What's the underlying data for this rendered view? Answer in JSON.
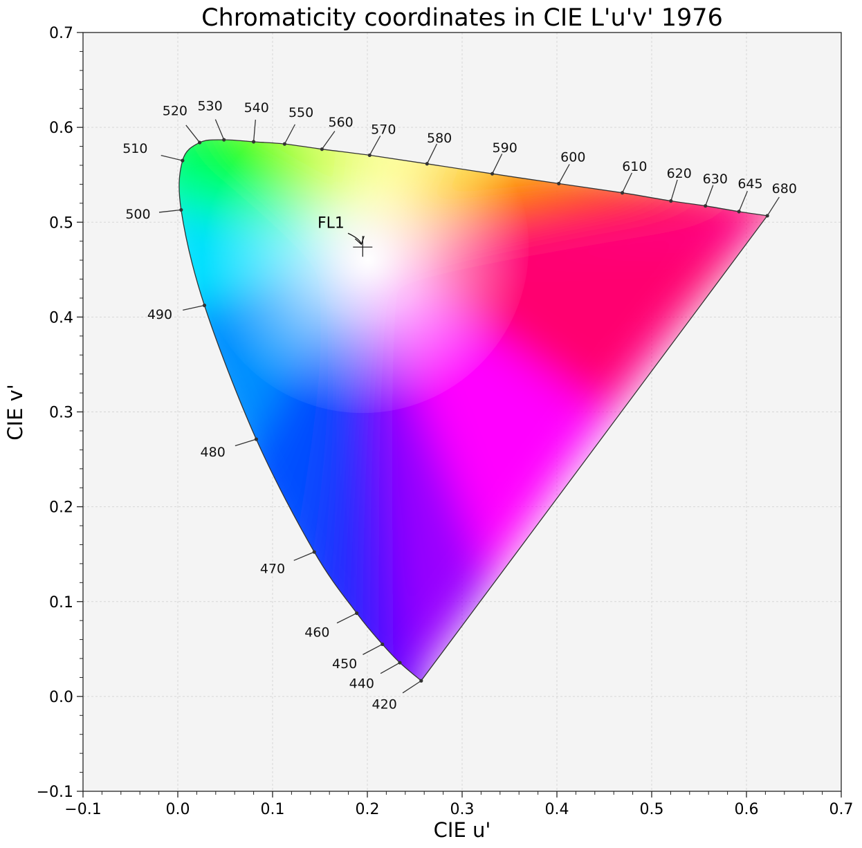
{
  "chart_data": {
    "type": "scatter",
    "title": "Chromaticity coordinates in CIE L'u'v' 1976",
    "xlabel": "CIE u'",
    "ylabel": "CIE v'",
    "xlim": [
      -0.1,
      0.7
    ],
    "ylim": [
      -0.1,
      0.7
    ],
    "xticks": [
      -0.1,
      0.0,
      0.1,
      0.2,
      0.3,
      0.4,
      0.5,
      0.6,
      0.7
    ],
    "yticks": [
      -0.1,
      0.0,
      0.1,
      0.2,
      0.3,
      0.4,
      0.5,
      0.6,
      0.7
    ],
    "xtick_labels": [
      "−0.1",
      "0.0",
      "0.1",
      "0.2",
      "0.3",
      "0.4",
      "0.5",
      "0.6",
      "0.7"
    ],
    "ytick_labels": [
      "−0.1",
      "0.0",
      "0.1",
      "0.2",
      "0.3",
      "0.4",
      "0.5",
      "0.6",
      "0.7"
    ],
    "grid": true,
    "background": "#f4f4f4",
    "spectral_locus": [
      {
        "label": "420",
        "u": 0.2568,
        "v": 0.0165,
        "lu": 0.218,
        "lv": -0.009
      },
      {
        "label": "440",
        "u": 0.2343,
        "v": 0.0356,
        "lu": 0.194,
        "lv": 0.013
      },
      {
        "label": "450",
        "u": 0.2159,
        "v": 0.055,
        "lu": 0.176,
        "lv": 0.034
      },
      {
        "label": "460",
        "u": 0.1888,
        "v": 0.0878,
        "lu": 0.147,
        "lv": 0.067
      },
      {
        "label": "470",
        "u": 0.144,
        "v": 0.1523,
        "lu": 0.1,
        "lv": 0.134
      },
      {
        "label": "480",
        "u": 0.0828,
        "v": 0.2712,
        "lu": 0.037,
        "lv": 0.257
      },
      {
        "label": "490",
        "u": 0.0281,
        "v": 0.4123,
        "lu": -0.019,
        "lv": 0.402
      },
      {
        "label": "500",
        "u": 0.0035,
        "v": 0.513,
        "lu": -0.042,
        "lv": 0.508
      },
      {
        "label": "510",
        "u": 0.005,
        "v": 0.565,
        "lu": -0.045,
        "lv": 0.577
      },
      {
        "label": "520",
        "u": 0.0231,
        "v": 0.584,
        "lu": -0.003,
        "lv": 0.617
      },
      {
        "label": "530",
        "u": 0.0487,
        "v": 0.5869,
        "lu": 0.034,
        "lv": 0.622
      },
      {
        "label": "540",
        "u": 0.08,
        "v": 0.5848,
        "lu": 0.083,
        "lv": 0.62
      },
      {
        "label": "550",
        "u": 0.1127,
        "v": 0.5825,
        "lu": 0.13,
        "lv": 0.615
      },
      {
        "label": "560",
        "u": 0.1521,
        "v": 0.577,
        "lu": 0.172,
        "lv": 0.605
      },
      {
        "label": "570",
        "u": 0.2024,
        "v": 0.5706,
        "lu": 0.217,
        "lv": 0.597
      },
      {
        "label": "580",
        "u": 0.263,
        "v": 0.5616,
        "lu": 0.276,
        "lv": 0.588
      },
      {
        "label": "590",
        "u": 0.3318,
        "v": 0.5511,
        "lu": 0.345,
        "lv": 0.578
      },
      {
        "label": "600",
        "u": 0.402,
        "v": 0.5407,
        "lu": 0.417,
        "lv": 0.568
      },
      {
        "label": "610",
        "u": 0.469,
        "v": 0.531,
        "lu": 0.482,
        "lv": 0.558
      },
      {
        "label": "620",
        "u": 0.5203,
        "v": 0.5224,
        "lu": 0.529,
        "lv": 0.551
      },
      {
        "label": "630",
        "u": 0.5567,
        "v": 0.5172,
        "lu": 0.567,
        "lv": 0.545
      },
      {
        "label": "645",
        "u": 0.5921,
        "v": 0.5112,
        "lu": 0.604,
        "lv": 0.54
      },
      {
        "label": "680",
        "u": 0.622,
        "v": 0.5068,
        "lu": 0.64,
        "lv": 0.535
      }
    ],
    "annotations": [
      {
        "label": "FL1",
        "u": 0.1951,
        "v": 0.4738,
        "text_u": 0.146,
        "text_v": 0.5
      }
    ]
  }
}
